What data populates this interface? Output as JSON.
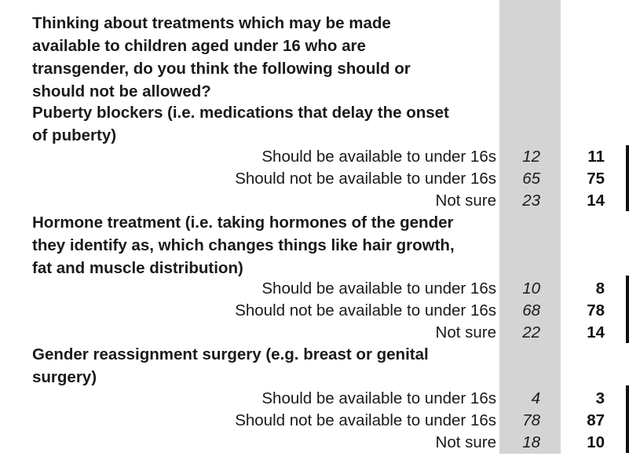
{
  "intro": {
    "question_text": "Thinking about treatments which may be made available to children aged under 16 who are transgender, do you think the following should or should not be allowed?",
    "lines": [
      "Thinking about treatments which may be made",
      "available to children aged under 16 who are",
      "transgender, do you think the following should or",
      "should not be allowed?"
    ]
  },
  "sections": [
    {
      "title_lines": [
        "Puberty blockers (i.e. medications that delay the onset",
        "of puberty)"
      ],
      "rows": [
        {
          "label": "Should be available to under 16s",
          "v1": "12",
          "v2": "11"
        },
        {
          "label": "Should not be available to under 16s",
          "v1": "65",
          "v2": "75"
        },
        {
          "label": "Not sure",
          "v1": "23",
          "v2": "14"
        }
      ]
    },
    {
      "title_lines": [
        "Hormone treatment (i.e. taking hormones of the gender",
        "they identify as, which changes things like hair growth,",
        "fat and muscle distribution)"
      ],
      "rows": [
        {
          "label": "Should be available to under 16s",
          "v1": "10",
          "v2": "8"
        },
        {
          "label": "Should not be available to under 16s",
          "v1": "68",
          "v2": "78"
        },
        {
          "label": "Not sure",
          "v1": "22",
          "v2": "14"
        }
      ]
    },
    {
      "title_lines": [
        "Gender reassignment surgery (e.g. breast or genital",
        "surgery)"
      ],
      "rows": [
        {
          "label": "Should be available to under 16s",
          "v1": "4",
          "v2": "3"
        },
        {
          "label": "Should not be available to under 16s",
          "v1": "78",
          "v2": "87"
        },
        {
          "label": "Not sure",
          "v1": "18",
          "v2": "10"
        }
      ]
    }
  ],
  "colors": {
    "shade_column": "#d4d4d4",
    "text": "#1a1a1a",
    "bar": "#111111"
  }
}
